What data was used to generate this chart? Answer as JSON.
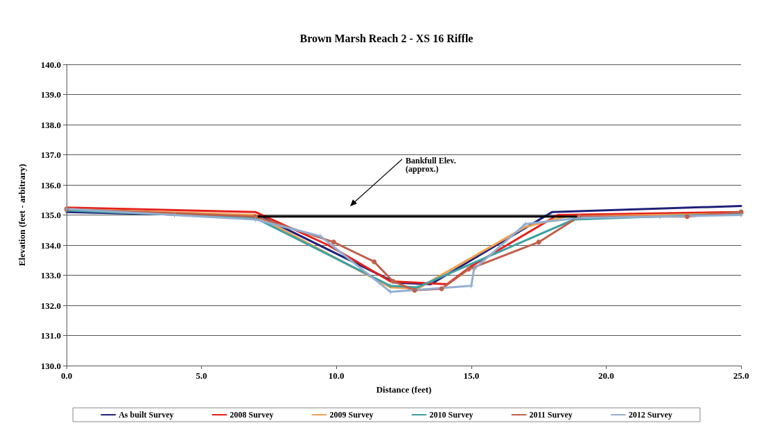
{
  "chart_data": {
    "type": "line",
    "title": "Brown Marsh Reach 2 - XS 16 Riffle",
    "xlabel": "Distance (feet)",
    "ylabel": "Elevation (feet - arbitrary)",
    "xlim": [
      0,
      25
    ],
    "xticks": [
      {
        "value": 0,
        "label": "0.0"
      },
      {
        "value": 5,
        "label": "5.0"
      },
      {
        "value": 10,
        "label": "10.0"
      },
      {
        "value": 15,
        "label": "15.0"
      },
      {
        "value": 20,
        "label": "20.0"
      },
      {
        "value": 25,
        "label": "25.0"
      }
    ],
    "ylim": [
      130,
      140
    ],
    "yticks": [
      {
        "value": 130,
        "label": "130.0"
      },
      {
        "value": 131,
        "label": "131.0"
      },
      {
        "value": 132,
        "label": "132.0"
      },
      {
        "value": 133,
        "label": "133.0"
      },
      {
        "value": 134,
        "label": "134.0"
      },
      {
        "value": 135,
        "label": "135.0"
      },
      {
        "value": 136,
        "label": "136.0"
      },
      {
        "value": 137,
        "label": "137.0"
      },
      {
        "value": 138,
        "label": "138.0"
      },
      {
        "value": 139,
        "label": "139.0"
      },
      {
        "value": 140,
        "label": "140.0"
      }
    ],
    "grid": "y",
    "legend": "bottom",
    "marker": "none",
    "line_style": "solid",
    "annotations": [
      "Bankfull Elev.\n(approx.)"
    ],
    "series": [
      {
        "name": "As built Survey",
        "color": "#1f1f7a",
        "x": [
          0,
          7.2,
          12.2,
          13.5,
          18,
          25
        ],
        "values": [
          135.1,
          134.95,
          132.75,
          132.7,
          135.1,
          135.3
        ]
      },
      {
        "name": "2008 Survey",
        "color": "#e3201b",
        "x": [
          0,
          7,
          9.7,
          12,
          14.1,
          15,
          18.2,
          25
        ],
        "values": [
          135.25,
          135.1,
          134.0,
          132.8,
          132.7,
          133.3,
          135.0,
          135.1
        ]
      },
      {
        "name": "2009 Survey",
        "color": "#f0a050",
        "x": [
          0,
          7,
          12,
          13,
          17,
          18.5,
          25
        ],
        "values": [
          135.2,
          135.0,
          132.6,
          132.55,
          134.6,
          134.95,
          135.05
        ]
      },
      {
        "name": "2010 Survey",
        "color": "#3fa0a0",
        "marker": "cross",
        "x": [
          0,
          7,
          12,
          13,
          18.8,
          25
        ],
        "values": [
          135.15,
          134.9,
          132.65,
          132.6,
          134.85,
          135.05
        ]
      },
      {
        "name": "2011 Survey",
        "color": "#c0604a",
        "marker": "circle",
        "x": [
          0,
          7,
          9.9,
          11.4,
          12.1,
          12.9,
          13.9,
          14.9,
          17.5,
          19,
          23,
          25
        ],
        "values": [
          135.2,
          134.95,
          134.1,
          133.45,
          132.8,
          132.5,
          132.55,
          133.2,
          134.1,
          134.95,
          134.95,
          135.1
        ]
      },
      {
        "name": "2012 Survey",
        "color": "#94aed0",
        "marker": "cross",
        "x": [
          0,
          4,
          7,
          9.4,
          12,
          15,
          15.1,
          17,
          19,
          22,
          25
        ],
        "values": [
          135.2,
          135.0,
          134.85,
          134.3,
          132.45,
          132.65,
          133.2,
          134.7,
          134.9,
          134.95,
          135.0
        ]
      },
      {
        "color": "#000000",
        "x": [
          7.1,
          19
        ],
        "values": [
          134.95,
          134.95
        ]
      }
    ]
  }
}
